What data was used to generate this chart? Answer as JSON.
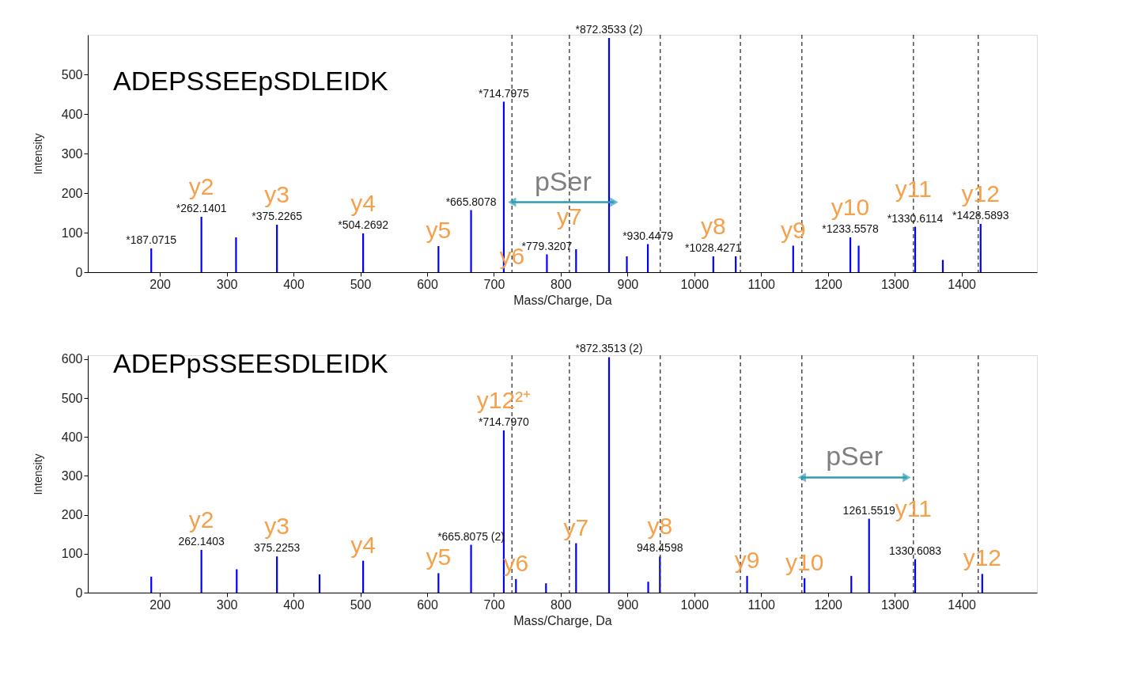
{
  "chart_data": [
    {
      "type": "bar",
      "title": "ADEPSSEEpSDLEIDK",
      "xlabel": "Mass/Charge, Da",
      "ylabel": "Intensity",
      "x": [
        187.07,
        262.14,
        314,
        375.23,
        504.27,
        617,
        665.81,
        714.8,
        779.32,
        823,
        872.35,
        899,
        930.45,
        1028.43,
        1062,
        1148,
        1233.56,
        1246,
        1330.61,
        1372,
        1428.59
      ],
      "values": [
        60,
        140,
        88,
        120,
        98,
        66,
        157,
        431,
        45,
        58,
        592,
        40,
        71,
        40,
        40,
        67,
        88,
        67,
        115,
        31,
        122
      ],
      "color": "#0000ff",
      "series": [
        {
          "type": "line",
          "name": "pSer",
          "x": [
            727,
            880
          ],
          "values": [
            177,
            177
          ],
          "color": "#2e9bb5",
          "marker": "triangle"
        }
      ],
      "xlim": [
        98,
        1507
      ],
      "ylim": [
        0,
        600
      ],
      "xticks": [
        200,
        300,
        400,
        500,
        600,
        700,
        800,
        900,
        1000,
        1100,
        1200,
        1300,
        1400
      ],
      "yticks": [
        0,
        100,
        200,
        300,
        400,
        500
      ],
      "ref_lines": [
        {
          "axis": "x",
          "value": 727,
          "line_style": "dashed",
          "color": "#333333"
        },
        {
          "axis": "x",
          "value": 813,
          "line_style": "dashed",
          "color": "#333333"
        },
        {
          "axis": "x",
          "value": 949,
          "line_style": "dashed",
          "color": "#333333"
        },
        {
          "axis": "x",
          "value": 1069,
          "line_style": "dashed",
          "color": "#333333"
        },
        {
          "axis": "x",
          "value": 1161,
          "line_style": "dashed",
          "color": "#333333"
        },
        {
          "axis": "x",
          "value": 1328,
          "line_style": "dashed",
          "color": "#333333"
        },
        {
          "axis": "x",
          "value": 1425,
          "line_style": "dashed",
          "color": "#333333"
        }
      ],
      "annotations": [
        {
          "text": "*187.0715",
          "x": 187.07,
          "y": 60
        },
        {
          "text": "*262.1401",
          "x": 262.14,
          "y": 140
        },
        {
          "text": "*375.2265",
          "x": 375.23,
          "y": 120
        },
        {
          "text": "*504.2692",
          "x": 504.27,
          "y": 98
        },
        {
          "text": "*665.8078",
          "x": 665.81,
          "y": 157
        },
        {
          "text": "*714.7975",
          "x": 714.8,
          "y": 431
        },
        {
          "text": "*779.3207",
          "x": 779.32,
          "y": 45
        },
        {
          "text": "*872.3533 (2)",
          "x": 872.35,
          "y": 592
        },
        {
          "text": "*930.4479",
          "x": 930.45,
          "y": 71
        },
        {
          "text": "*1028.4271",
          "x": 1028.43,
          "y": 40
        },
        {
          "text": "*1233.5578",
          "x": 1233.56,
          "y": 88
        },
        {
          "text": "*1330.6114",
          "x": 1330.61,
          "y": 115
        },
        {
          "text": "*1428.5893",
          "x": 1428.59,
          "y": 122
        },
        {
          "text": "y2",
          "x": 262.14,
          "y": 140
        },
        {
          "text": "y3",
          "x": 375.23,
          "y": 120
        },
        {
          "text": "y4",
          "x": 504.27,
          "y": 98
        },
        {
          "text": "y5",
          "x": 617,
          "y": 66
        },
        {
          "text": "y6",
          "x": 727,
          "y": 0
        },
        {
          "text": "y7",
          "x": 813,
          "y": 100
        },
        {
          "text": "y8",
          "x": 1028.43,
          "y": 40
        },
        {
          "text": "y9",
          "x": 1148,
          "y": 67
        },
        {
          "text": "y10",
          "x": 1233.56,
          "y": 88
        },
        {
          "text": "y11",
          "x": 1328,
          "y": 170
        },
        {
          "text": "y12",
          "x": 1428.59,
          "y": 122
        }
      ]
    },
    {
      "type": "bar",
      "title": "ADEPpSSEESDLEIDK",
      "xlabel": "Mass/Charge, Da",
      "ylabel": "Intensity",
      "x": [
        187.07,
        262.14,
        315,
        375.23,
        439,
        504.27,
        617,
        665.81,
        714.8,
        733,
        778,
        823,
        872.35,
        931,
        948.46,
        1079,
        1165,
        1235,
        1261.55,
        1330.61,
        1431
      ],
      "values": [
        41,
        110,
        60,
        93,
        47,
        82,
        50,
        123,
        417,
        35,
        24,
        127,
        605,
        28,
        93,
        43,
        37,
        43,
        190,
        86,
        48
      ],
      "color": "#0000ff",
      "series": [
        {
          "type": "line",
          "name": "pSer",
          "x": [
            1161,
            1318
          ],
          "values": [
            296,
            296
          ],
          "color": "#2e9bb5",
          "marker": "triangle"
        }
      ],
      "xlim": [
        98,
        1507
      ],
      "ylim": [
        0,
        610
      ],
      "xticks": [
        200,
        300,
        400,
        500,
        600,
        700,
        800,
        900,
        1000,
        1100,
        1200,
        1300,
        1400
      ],
      "yticks": [
        0,
        100,
        200,
        300,
        400,
        500,
        600
      ],
      "ref_lines": [
        {
          "axis": "x",
          "value": 727,
          "line_style": "dashed",
          "color": "#333333"
        },
        {
          "axis": "x",
          "value": 813,
          "line_style": "dashed",
          "color": "#333333"
        },
        {
          "axis": "x",
          "value": 949,
          "line_style": "dashed",
          "color": "#333333"
        },
        {
          "axis": "x",
          "value": 1069,
          "line_style": "dashed",
          "color": "#333333"
        },
        {
          "axis": "x",
          "value": 1161,
          "line_style": "dashed",
          "color": "#333333"
        },
        {
          "axis": "x",
          "value": 1328,
          "line_style": "dashed",
          "color": "#333333"
        },
        {
          "axis": "x",
          "value": 1425,
          "line_style": "dashed",
          "color": "#333333"
        }
      ],
      "annotations": [
        {
          "text": "262.1403",
          "x": 262.14,
          "y": 110
        },
        {
          "text": "375.2253",
          "x": 375.23,
          "y": 93
        },
        {
          "text": "*665.8075 (2)",
          "x": 665.81,
          "y": 123
        },
        {
          "text": "*714.7970",
          "x": 714.8,
          "y": 417
        },
        {
          "text": "*872.3513 (2)",
          "x": 872.35,
          "y": 605
        },
        {
          "text": "948.4598",
          "x": 948.46,
          "y": 93
        },
        {
          "text": "1261.5519",
          "x": 1261.55,
          "y": 190
        },
        {
          "text": "1330.6083",
          "x": 1330.61,
          "y": 86
        },
        {
          "text": "y2",
          "x": 262.14,
          "y": 110
        },
        {
          "text": "y3",
          "x": 375.23,
          "y": 93
        },
        {
          "text": "y4",
          "x": 504.27,
          "y": 82
        },
        {
          "text": "y5",
          "x": 617,
          "y": 50
        },
        {
          "text": "y6",
          "x": 733,
          "y": 35
        },
        {
          "text": "y7",
          "x": 823,
          "y": 127
        },
        {
          "text": "y8",
          "x": 948.46,
          "y": 93
        },
        {
          "text": "y9",
          "x": 1079,
          "y": 43
        },
        {
          "text": "y10",
          "x": 1165,
          "y": 37
        },
        {
          "text": "y11",
          "x": 1328,
          "y": 175
        },
        {
          "text": "y12",
          "x": 1431,
          "y": 48
        },
        {
          "text": "y12²⁺",
          "x": 714.8,
          "y": 417
        }
      ]
    }
  ]
}
